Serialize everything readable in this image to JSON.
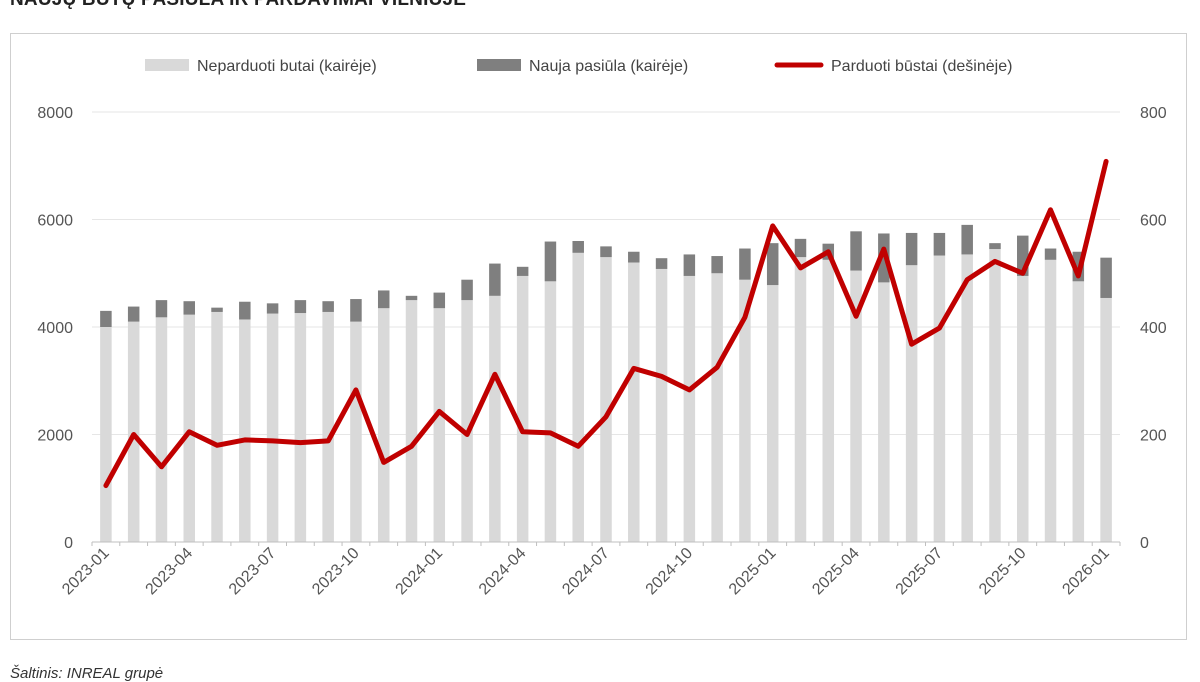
{
  "page": {
    "title": "NAUJŲ BŪTŲ PASIŪLA IR PARDAVIMAI VILNIUJE",
    "source": "Šaltinis: INREAL grupė"
  },
  "colors": {
    "unsold": "#d9d9d9",
    "new_supply": "#7f7f7f",
    "sold": "#c00000",
    "axis": "#bfbfbf",
    "tick_text": "#555555"
  },
  "chart_data": {
    "type": "bar",
    "periods": [
      "2023-01",
      "2023-02",
      "2023-03",
      "2023-04",
      "2023-05",
      "2023-06",
      "2023-07",
      "2023-08",
      "2023-09",
      "2023-10",
      "2023-11",
      "2023-12",
      "2024-01",
      "2024-02",
      "2024-03",
      "2024-04",
      "2024-05",
      "2024-06",
      "2024-07",
      "2024-08",
      "2024-09",
      "2024-10",
      "2024-11",
      "2024-12",
      "2025-01",
      "2025-02",
      "2025-03",
      "2025-04",
      "2025-05",
      "2025-06",
      "2025-07",
      "2025-08",
      "2025-09",
      "2025-10",
      "2025-11",
      "2025-12",
      "2026-01"
    ],
    "x_tick_labels": [
      "2023-01",
      "2023-04",
      "2023-07",
      "2023-10",
      "2024-01",
      "2024-04",
      "2024-07",
      "2024-10",
      "2025-01",
      "2025-04",
      "2025-07",
      "2025-10",
      "2026-01"
    ],
    "series": [
      {
        "name": "Neparduoti butai (kairėje)",
        "axis": "left",
        "kind": "stacked-bar",
        "values": [
          4000,
          4100,
          4180,
          4230,
          4280,
          4140,
          4250,
          4260,
          4280,
          4100,
          4350,
          4500,
          4350,
          4500,
          4580,
          4950,
          4850,
          5380,
          5300,
          5200,
          5080,
          4950,
          5000,
          4880,
          4780,
          5300,
          5250,
          5050,
          4830,
          5150,
          5330,
          5350,
          5450,
          4950,
          5250,
          4850,
          4540
        ]
      },
      {
        "name": "Nauja pasiūla (kairėje)",
        "axis": "left",
        "kind": "stacked-bar",
        "values": [
          300,
          280,
          320,
          250,
          80,
          330,
          190,
          240,
          200,
          420,
          330,
          80,
          290,
          380,
          600,
          170,
          740,
          220,
          200,
          200,
          200,
          400,
          320,
          580,
          780,
          340,
          300,
          730,
          910,
          600,
          420,
          550,
          110,
          750,
          210,
          550,
          750
        ]
      },
      {
        "name": "Parduoti būstai (dešinėje)",
        "axis": "right",
        "kind": "line",
        "values": [
          105,
          200,
          140,
          205,
          180,
          190,
          188,
          185,
          188,
          283,
          148,
          178,
          243,
          200,
          312,
          205,
          203,
          178,
          233,
          323,
          308,
          283,
          325,
          418,
          588,
          510,
          540,
          420,
          545,
          368,
          398,
          488,
          522,
          500,
          618,
          495,
          708
        ]
      }
    ],
    "y_left": {
      "min": 0,
      "max": 8000,
      "ticks": [
        0,
        2000,
        4000,
        6000,
        8000
      ]
    },
    "y_right": {
      "min": 0,
      "max": 800,
      "ticks": [
        0,
        200,
        400,
        600,
        800
      ]
    },
    "xlabel": "",
    "ylabel_left": "",
    "ylabel_right": "",
    "grid": "horizontal",
    "legend_position": "top"
  }
}
